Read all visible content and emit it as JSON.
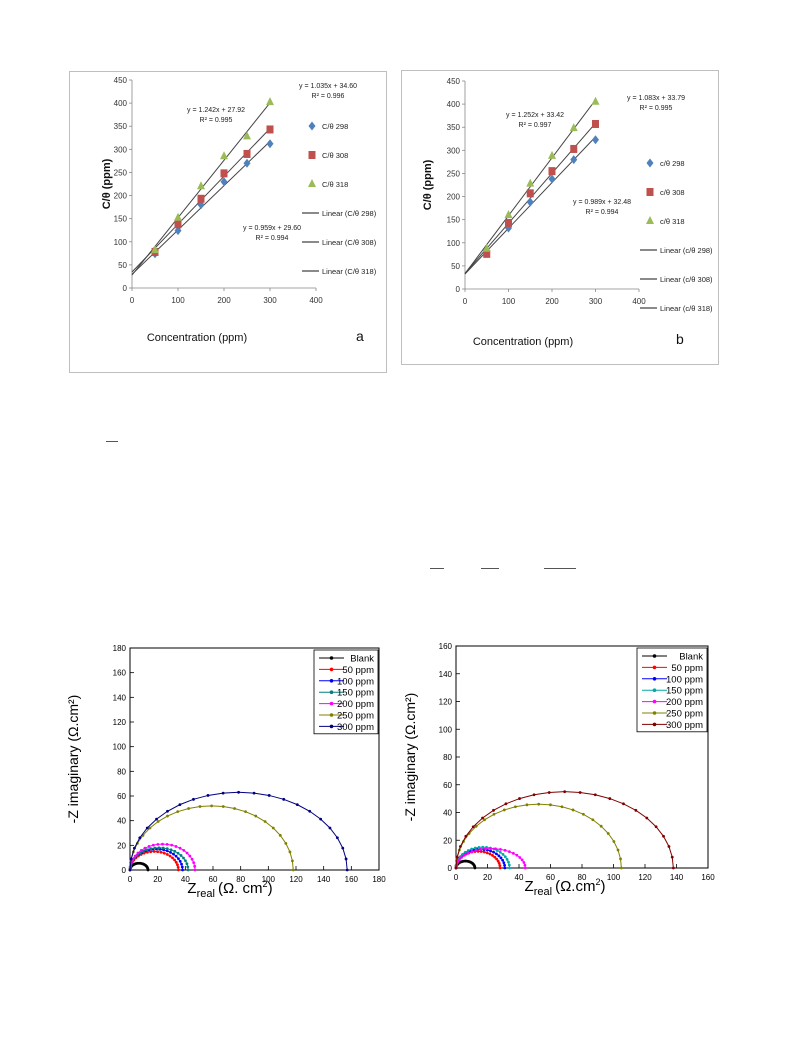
{
  "chart_data": [
    {
      "type": "scatter",
      "panel_label": "a",
      "xlabel": "Concentration (ppm)",
      "ylabel": "C/θ (ppm)",
      "xlim": [
        0,
        400
      ],
      "ylim": [
        0,
        450
      ],
      "xticks": [
        "0",
        "100",
        "200",
        "300",
        "400"
      ],
      "yticks": [
        "0",
        "50",
        "100",
        "150",
        "200",
        "250",
        "300",
        "350",
        "400",
        "450"
      ],
      "x": [
        50,
        100,
        150,
        200,
        250,
        300
      ],
      "series": [
        {
          "name": "C/θ 298",
          "marker": "diamond",
          "color": "#4f81bd",
          "values": [
            74,
            124,
            180,
            230,
            270,
            312
          ]
        },
        {
          "name": "C/θ 308",
          "marker": "square",
          "color": "#c0504d",
          "values": [
            78,
            138,
            193,
            248,
            290,
            343
          ]
        },
        {
          "name": "C/θ 318",
          "marker": "triangle",
          "color": "#9bbb59",
          "values": [
            82,
            152,
            220,
            285,
            328,
            402
          ]
        }
      ],
      "fits": [
        {
          "name": "Linear (C/θ 298)",
          "slope": 0.959,
          "intercept": 29.6
        },
        {
          "name": "Linear (C/θ 308)",
          "slope": 1.035,
          "intercept": 34.6
        },
        {
          "name": "Linear (C/θ 318)",
          "slope": 1.242,
          "intercept": 27.92
        }
      ],
      "annotations": [
        {
          "eq": "y = 1.242x + 27.92",
          "r2": "R² = 0.995"
        },
        {
          "eq": "y = 1.035x + 34.60",
          "r2": "R² = 0.996"
        },
        {
          "eq": "y = 0.959x + 29.60",
          "r2": "R² = 0.994"
        }
      ]
    },
    {
      "type": "scatter",
      "panel_label": "b",
      "xlabel": "Concentration (ppm)",
      "ylabel": "C/θ (ppm)",
      "xlim": [
        0,
        400
      ],
      "ylim": [
        0,
        450
      ],
      "xticks": [
        "0",
        "100",
        "200",
        "300",
        "400"
      ],
      "yticks": [
        "0",
        "50",
        "100",
        "150",
        "200",
        "250",
        "300",
        "350",
        "400",
        "450"
      ],
      "x": [
        50,
        100,
        150,
        200,
        250,
        300
      ],
      "series": [
        {
          "name": "c/θ 298",
          "marker": "diamond",
          "color": "#4f81bd",
          "values": [
            80,
            132,
            188,
            238,
            280,
            323
          ]
        },
        {
          "name": "c/θ 308",
          "marker": "square",
          "color": "#c0504d",
          "values": [
            76,
            143,
            207,
            255,
            303,
            357
          ]
        },
        {
          "name": "c/θ 318",
          "marker": "triangle",
          "color": "#9bbb59",
          "values": [
            87,
            160,
            228,
            288,
            348,
            405
          ]
        }
      ],
      "fits": [
        {
          "name": "Linear (c/θ 298)",
          "slope": 0.989,
          "intercept": 32.48
        },
        {
          "name": "Linear (c/θ 308)",
          "slope": 1.083,
          "intercept": 33.79
        },
        {
          "name": "Linear (c/θ 318)",
          "slope": 1.252,
          "intercept": 33.42
        }
      ],
      "annotations": [
        {
          "eq": "y = 1.252x + 33.42",
          "r2": "R² = 0.997"
        },
        {
          "eq": "y = 1.083x + 33.79",
          "r2": "R² = 0.995"
        },
        {
          "eq": "y = 0.989x + 32.48",
          "r2": "R² = 0.994"
        }
      ]
    },
    {
      "type": "line",
      "xlabel_main": "Z",
      "xlabel_sub": "real",
      "xlabel_unit": "(Ω. cm",
      "xlabel_sup": "2",
      "xlabel_close": ")",
      "ylabel": "-Z imaginary (Ω.cm²)",
      "xlim": [
        0,
        180
      ],
      "ylim": [
        0,
        180
      ],
      "xticks": [
        "0",
        "20",
        "40",
        "60",
        "80",
        "100",
        "120",
        "140",
        "160",
        "180"
      ],
      "yticks": [
        "0",
        "20",
        "40",
        "60",
        "80",
        "100",
        "120",
        "140",
        "160",
        "180"
      ],
      "series": [
        {
          "name": "Blank",
          "color": "#000000",
          "diameter": 13,
          "peak": 5.5
        },
        {
          "name": "50 ppm",
          "color": "#ff0000",
          "diameter": 35,
          "peak": 15
        },
        {
          "name": "100 ppm",
          "color": "#0000ff",
          "diameter": 38,
          "peak": 17
        },
        {
          "name": "150 ppm",
          "color": "#008080",
          "diameter": 42,
          "peak": 18
        },
        {
          "name": "200 ppm",
          "color": "#ff00ff",
          "diameter": 47,
          "peak": 21
        },
        {
          "name": "250 ppm",
          "color": "#808000",
          "diameter": 118,
          "peak": 52
        },
        {
          "name": "300 ppm",
          "color": "#000080",
          "diameter": 157,
          "peak": 63
        }
      ]
    },
    {
      "type": "line",
      "xlabel_main": "Z",
      "xlabel_sub": "real",
      "xlabel_unit": "(Ω.cm",
      "xlabel_sup": "2",
      "xlabel_close": ")",
      "ylabel": "-Z imaginary (Ω.cm²)",
      "xlim": [
        0,
        160
      ],
      "ylim": [
        0,
        160
      ],
      "xticks": [
        "0",
        "20",
        "40",
        "60",
        "80",
        "100",
        "120",
        "140",
        "160"
      ],
      "yticks": [
        "0",
        "20",
        "40",
        "60",
        "80",
        "100",
        "120",
        "140",
        "160"
      ],
      "series": [
        {
          "name": "Blank",
          "color": "#000000",
          "diameter": 12,
          "peak": 5
        },
        {
          "name": "50 ppm",
          "color": "#ff0000",
          "diameter": 28,
          "peak": 12
        },
        {
          "name": "100 ppm",
          "color": "#0000ff",
          "diameter": 31,
          "peak": 13.5
        },
        {
          "name": "150 ppm",
          "color": "#00aaaa",
          "diameter": 34,
          "peak": 15
        },
        {
          "name": "200 ppm",
          "color": "#ff00ff",
          "diameter": 44,
          "peak": 14
        },
        {
          "name": "250 ppm",
          "color": "#808000",
          "diameter": 105,
          "peak": 46
        },
        {
          "name": "300 ppm",
          "color": "#800000",
          "diameter": 138,
          "peak": 55
        }
      ]
    }
  ]
}
